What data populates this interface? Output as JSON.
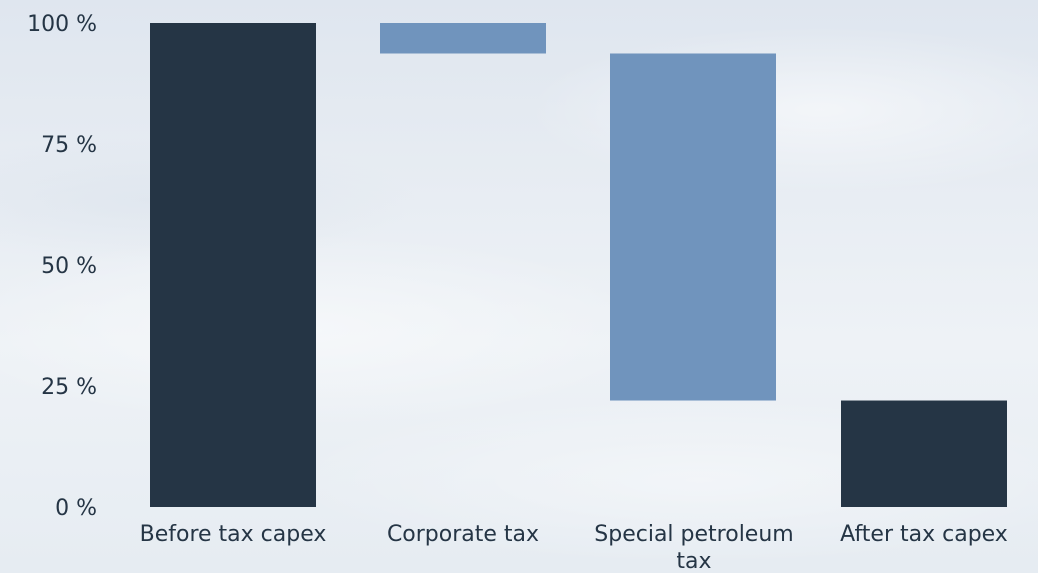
{
  "chart_data": {
    "type": "bar",
    "subtype": "waterfall",
    "title": "",
    "xlabel": "",
    "ylabel": "",
    "ylim": [
      0,
      100
    ],
    "y_ticks": [
      "0 %",
      "25 %",
      "50 %",
      "75 %",
      "100 %"
    ],
    "y_tick_values": [
      0,
      25,
      50,
      75,
      100
    ],
    "grid": false,
    "legend": "none",
    "bars": [
      {
        "category": "Before tax capex",
        "label_lines": [
          "Before tax capex"
        ],
        "start": 0,
        "end": 100,
        "kind": "total"
      },
      {
        "category": "Corporate tax",
        "label_lines": [
          "Corporate tax"
        ],
        "start": 93.7,
        "end": 100,
        "kind": "step"
      },
      {
        "category": "Special petroleum tax",
        "label_lines": [
          "Special petroleum",
          "tax"
        ],
        "start": 22,
        "end": 93.7,
        "kind": "step"
      },
      {
        "category": "After tax capex",
        "label_lines": [
          "After tax capex"
        ],
        "start": 0,
        "end": 22,
        "kind": "total"
      }
    ],
    "colors": {
      "total": "#253545",
      "step": "#7094bd",
      "text": "#253545"
    }
  }
}
